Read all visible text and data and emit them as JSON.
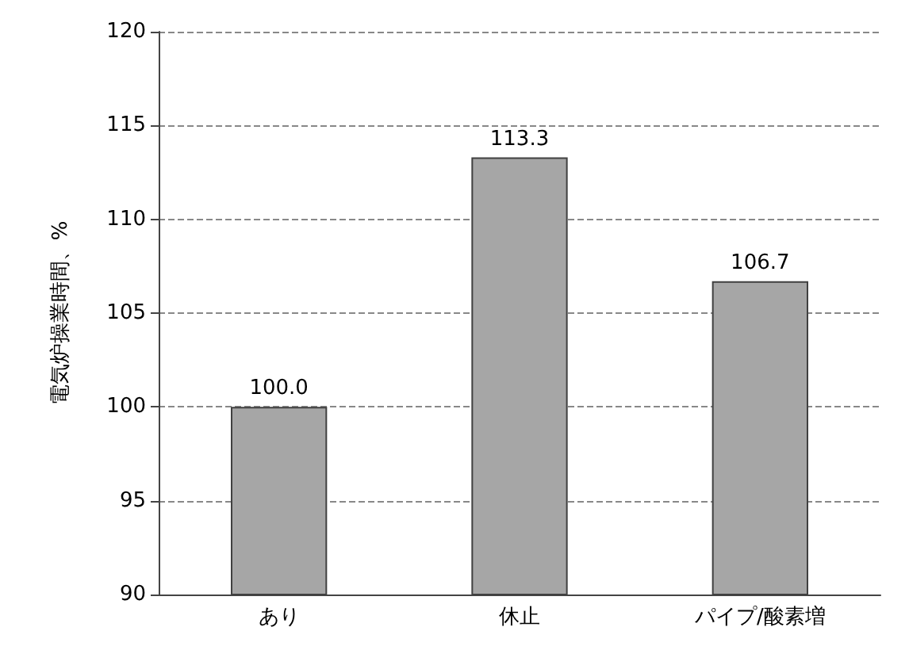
{
  "chart_data": {
    "type": "bar",
    "ylabel": "電気炉操業時間、%",
    "categories": [
      "あり",
      "休止",
      "パイプ/酸素増"
    ],
    "values": [
      100.0,
      113.3,
      106.7
    ],
    "color": "#a6a6a6",
    "ylim": [
      90,
      120
    ],
    "yticks": [
      90,
      95,
      100,
      105,
      110,
      115,
      120
    ],
    "grid": "y",
    "value_labels": [
      "100.0",
      "113.3",
      "106.7"
    ]
  }
}
